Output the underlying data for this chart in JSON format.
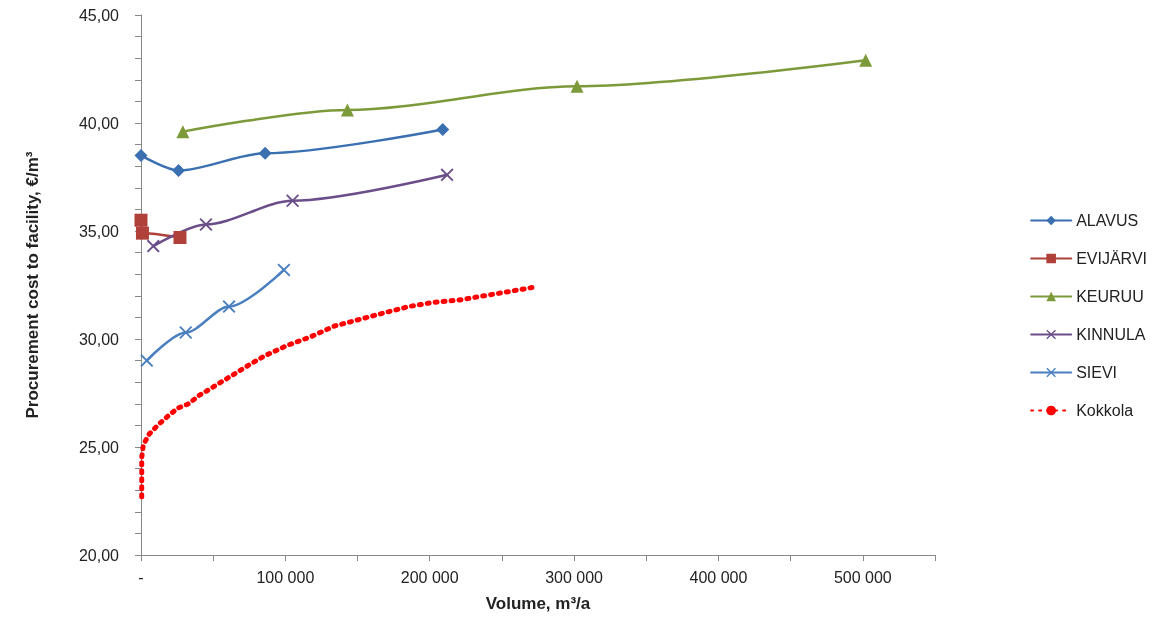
{
  "chart_data": {
    "type": "line",
    "xlabel": "Volume, m³/a",
    "ylabel": "Procurement cost to facility, €/m³",
    "xlim": [
      0,
      550000
    ],
    "xticks": [
      {
        "value": 0,
        "label": "-"
      },
      {
        "value": 50000,
        "label": null
      },
      {
        "value": 100000,
        "label": "100 000"
      },
      {
        "value": 150000,
        "label": null
      },
      {
        "value": 200000,
        "label": "200 000"
      },
      {
        "value": 250000,
        "label": null
      },
      {
        "value": 300000,
        "label": "300 000"
      },
      {
        "value": 350000,
        "label": null
      },
      {
        "value": 400000,
        "label": "400 000"
      },
      {
        "value": 450000,
        "label": null
      },
      {
        "value": 500000,
        "label": "500 000"
      },
      {
        "value": 550000,
        "label": null
      }
    ],
    "ylim": [
      20,
      45
    ],
    "yticks": [
      {
        "value": 20,
        "label": "20,00"
      },
      {
        "value": 21,
        "label": null
      },
      {
        "value": 22,
        "label": null
      },
      {
        "value": 23,
        "label": null
      },
      {
        "value": 24,
        "label": null
      },
      {
        "value": 25,
        "label": "25,00"
      },
      {
        "value": 26,
        "label": null
      },
      {
        "value": 27,
        "label": null
      },
      {
        "value": 28,
        "label": null
      },
      {
        "value": 29,
        "label": null
      },
      {
        "value": 30,
        "label": "30,00"
      },
      {
        "value": 31,
        "label": null
      },
      {
        "value": 32,
        "label": null
      },
      {
        "value": 33,
        "label": null
      },
      {
        "value": 34,
        "label": null
      },
      {
        "value": 35,
        "label": "35,00"
      },
      {
        "value": 36,
        "label": null
      },
      {
        "value": 37,
        "label": null
      },
      {
        "value": 38,
        "label": null
      },
      {
        "value": 39,
        "label": null
      },
      {
        "value": 40,
        "label": "40,00"
      },
      {
        "value": 41,
        "label": null
      },
      {
        "value": 42,
        "label": null
      },
      {
        "value": 43,
        "label": null
      },
      {
        "value": 44,
        "label": null
      },
      {
        "value": 45,
        "label": "45,00"
      }
    ],
    "grid": false,
    "legend": "right",
    "line_style": "solid",
    "series": [
      {
        "name": "ALAVUS",
        "color": "#3a6fb0",
        "marker": "diamond",
        "x": [
          0,
          26000,
          86000,
          209000
        ],
        "values": [
          38.5,
          37.8,
          38.6,
          39.7
        ]
      },
      {
        "name": "EVIJÄRVI",
        "color": "#b0403a",
        "marker": "square",
        "x": [
          0,
          1000,
          27000
        ],
        "values": [
          35.5,
          34.9,
          34.7
        ]
      },
      {
        "name": "KEURUU",
        "color": "#7d9a3a",
        "marker": "triangle",
        "x": [
          29000,
          143000,
          302000,
          502000
        ],
        "values": [
          39.6,
          40.6,
          41.7,
          42.9
        ]
      },
      {
        "name": "KINNULA",
        "color": "#6b4d8a",
        "marker": "cross",
        "x": [
          8500,
          45000,
          105000,
          212000
        ],
        "values": [
          34.3,
          35.3,
          36.4,
          37.6
        ]
      },
      {
        "name": "SIEVI",
        "color": "#4a7fc0",
        "marker": "cross",
        "x": [
          4000,
          31000,
          61000,
          99000
        ],
        "values": [
          29.0,
          30.3,
          31.5,
          33.2
        ]
      },
      {
        "name": "Kokkola",
        "color": "#ff0000",
        "marker": "none",
        "line_style": "dotted",
        "x": [
          500,
          500,
          500,
          500,
          1600,
          5700,
          11500,
          18100,
          25500,
          32900,
          40500,
          48100,
          55400,
          69900,
          85000,
          101200,
          117500,
          134000,
          151000,
          167800,
          185300,
          202800,
          220000,
          237700,
          255200,
          272400
        ],
        "values": [
          22.7,
          23.3,
          23.9,
          24.5,
          25.1,
          25.6,
          26.0,
          26.4,
          26.8,
          27.0,
          27.4,
          27.7,
          28.0,
          28.6,
          29.2,
          29.7,
          30.1,
          30.6,
          30.9,
          31.2,
          31.5,
          31.7,
          31.8,
          32.0,
          32.2,
          32.4
        ]
      }
    ]
  }
}
